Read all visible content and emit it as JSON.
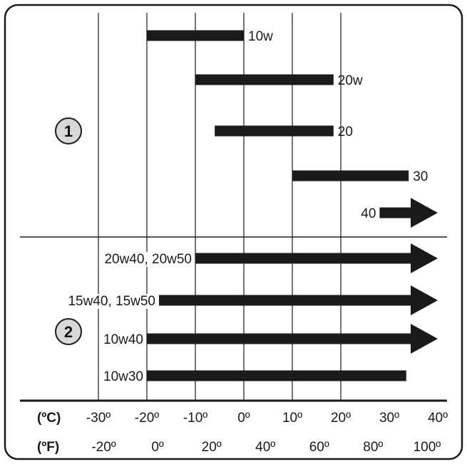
{
  "chart_data": {
    "type": "bar",
    "title": "",
    "xlabel": "",
    "ylabel": "",
    "celsius_ticks": [
      {
        "value": -30,
        "label": "-30º"
      },
      {
        "value": -20,
        "label": "-20º"
      },
      {
        "value": -10,
        "label": "-10º"
      },
      {
        "value": 0,
        "label": "0º"
      },
      {
        "value": 10,
        "label": "10º"
      },
      {
        "value": 20,
        "label": "20º"
      },
      {
        "value": 30,
        "label": "30º"
      },
      {
        "value": 40,
        "label": "40º"
      }
    ],
    "fahrenheit_ticks": [
      {
        "value": -20,
        "label": "-20º"
      },
      {
        "value": 0,
        "label": "0º"
      },
      {
        "value": 20,
        "label": "20º"
      },
      {
        "value": 40,
        "label": "40º"
      },
      {
        "value": 60,
        "label": "60º"
      },
      {
        "value": 80,
        "label": "80º"
      },
      {
        "value": 100,
        "label": "100º"
      }
    ],
    "celsius_unit_label": "(ºC)",
    "fahrenheit_unit_label": "(ºF)",
    "xlim_celsius": [
      -40,
      40
    ],
    "grid": true,
    "groups": [
      {
        "marker": "1",
        "series": [
          {
            "name": "10w",
            "min": -20,
            "max": 0,
            "open_ended": false
          },
          {
            "name": "20w",
            "min": -10,
            "max": 18.5,
            "open_ended": false
          },
          {
            "name": "20",
            "min": -6,
            "max": 18.5,
            "open_ended": false
          },
          {
            "name": "30",
            "min": 10,
            "max": 34,
            "open_ended": false
          },
          {
            "name": "40",
            "min": 28,
            "max": 40,
            "open_ended": true
          }
        ]
      },
      {
        "marker": "2",
        "series": [
          {
            "name": "20w40, 20w50",
            "min": -10,
            "max": 40,
            "open_ended": true
          },
          {
            "name": "15w40, 15w50",
            "min": -17.5,
            "max": 40,
            "open_ended": true
          },
          {
            "name": "10w40",
            "min": -20,
            "max": 40,
            "open_ended": true
          },
          {
            "name": "10w30",
            "min": -20,
            "max": 33.5,
            "open_ended": false
          }
        ]
      }
    ]
  }
}
